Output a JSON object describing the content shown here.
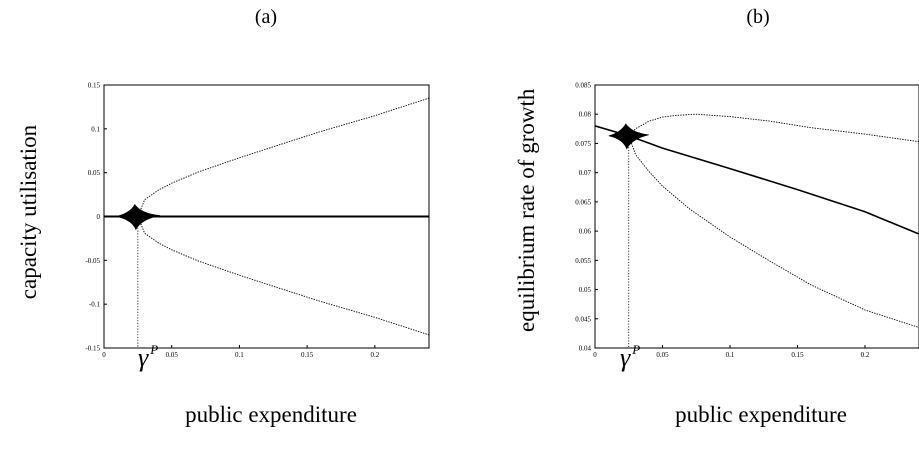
{
  "panels": [
    {
      "label": "(a)",
      "xlabel": "public expenditure",
      "ylabel": "capacity utilisation",
      "bifurcation_marker": "γ",
      "bifurcation_marker_sup": "P"
    },
    {
      "label": "(b)",
      "xlabel": "public expenditure",
      "ylabel": "equilibrium rate of growth",
      "bifurcation_marker": "γ",
      "bifurcation_marker_sup": "P"
    }
  ],
  "chart_data": [
    {
      "type": "line",
      "title": "(a)",
      "xlabel": "public expenditure",
      "ylabel": "capacity utilisation",
      "xlim": [
        0,
        0.24
      ],
      "ylim": [
        -0.15,
        0.15
      ],
      "xticks": [
        0,
        0.05,
        0.1,
        0.15,
        0.2
      ],
      "xtick_labels": [
        "0",
        "0.05",
        "0.1",
        "0.15",
        "0.2"
      ],
      "yticks": [
        -0.15,
        -0.1,
        -0.05,
        0,
        0.05,
        0.1,
        0.15
      ],
      "ytick_labels": [
        "-0.15",
        "-0.1",
        "-0.05",
        "0",
        "0.05",
        "0.1",
        "0.15"
      ],
      "grid": false,
      "bifurcation_x": 0.025,
      "series": [
        {
          "style": "solid",
          "x": [
            0,
            0.24
          ],
          "y": [
            0,
            0
          ]
        },
        {
          "style": "dotted",
          "x": [
            0.025,
            0.03,
            0.04,
            0.05,
            0.07,
            0.1,
            0.13,
            0.16,
            0.2,
            0.24
          ],
          "y": [
            0,
            0.019,
            0.03,
            0.038,
            0.051,
            0.067,
            0.082,
            0.097,
            0.115,
            0.135
          ]
        },
        {
          "style": "dotted",
          "x": [
            0.025,
            0.03,
            0.04,
            0.05,
            0.07,
            0.1,
            0.13,
            0.16,
            0.2,
            0.24
          ],
          "y": [
            0,
            -0.019,
            -0.03,
            -0.038,
            -0.051,
            -0.067,
            -0.082,
            -0.097,
            -0.115,
            -0.135
          ]
        }
      ]
    },
    {
      "type": "line",
      "title": "(b)",
      "xlabel": "public expenditure",
      "ylabel": "equilibrium rate of growth",
      "xlim": [
        0,
        0.24
      ],
      "ylim": [
        0.04,
        0.085
      ],
      "xticks": [
        0,
        0.05,
        0.1,
        0.15,
        0.2
      ],
      "xtick_labels": [
        "0",
        "0.05",
        "0.1",
        "0.15",
        "0.2"
      ],
      "yticks": [
        0.04,
        0.045,
        0.05,
        0.055,
        0.06,
        0.065,
        0.07,
        0.075,
        0.08,
        0.085
      ],
      "ytick_labels": [
        "0.04",
        "0.045",
        "0.05",
        "0.055",
        "0.06",
        "0.065",
        "0.07",
        "0.075",
        "0.08",
        "0.085"
      ],
      "grid": false,
      "bifurcation_x": 0.025,
      "series": [
        {
          "style": "solid",
          "x": [
            0,
            0.025,
            0.05,
            0.1,
            0.15,
            0.2,
            0.24
          ],
          "y": [
            0.078,
            0.0763,
            0.0742,
            0.0707,
            0.0671,
            0.0633,
            0.0595
          ]
        },
        {
          "style": "dotted",
          "x": [
            0.025,
            0.03,
            0.04,
            0.05,
            0.06,
            0.075,
            0.1,
            0.13,
            0.16,
            0.2,
            0.24
          ],
          "y": [
            0.0763,
            0.0775,
            0.0788,
            0.0795,
            0.0798,
            0.08,
            0.0796,
            0.0788,
            0.0777,
            0.0766,
            0.0753
          ]
        },
        {
          "style": "dotted",
          "x": [
            0.025,
            0.03,
            0.04,
            0.05,
            0.07,
            0.1,
            0.13,
            0.16,
            0.2,
            0.24
          ],
          "y": [
            0.0763,
            0.0731,
            0.0702,
            0.0677,
            0.0638,
            0.059,
            0.0548,
            0.0508,
            0.0465,
            0.0435
          ]
        }
      ]
    }
  ]
}
